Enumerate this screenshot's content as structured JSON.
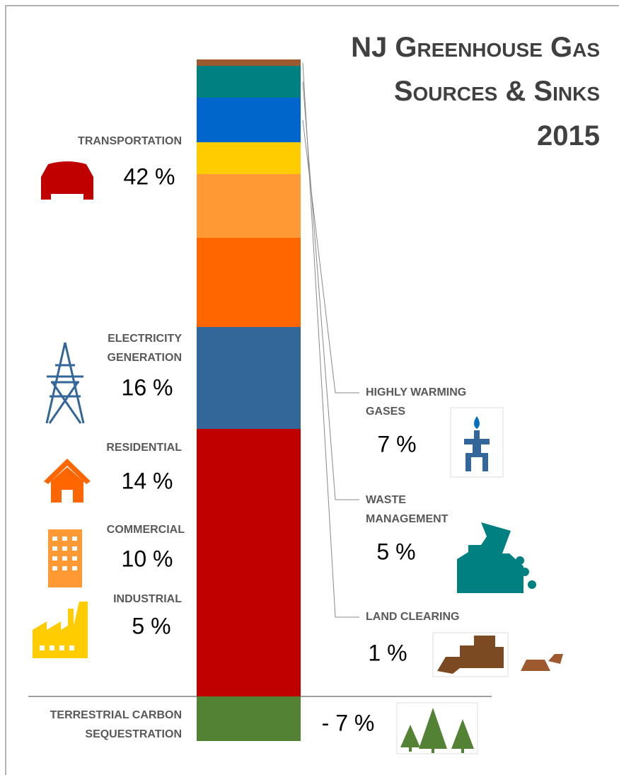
{
  "chart_data": {
    "type": "stacked_bar",
    "title": [
      "NJ Greenhouse Gas",
      "Sources & Sinks",
      "2015"
    ],
    "categories": [
      "TRANSPORTATION",
      "ELECTRICITY GENERATION",
      "RESIDENTIAL",
      "COMMERCIAL",
      "INDUSTRIAL",
      "HIGHLY WARMING GASES",
      "WASTE MANAGEMENT",
      "LAND CLEARING",
      "TERRESTRIAL CARBON SEQUESTRATION"
    ],
    "values": [
      42,
      16,
      14,
      10,
      5,
      7,
      5,
      1,
      -7
    ],
    "value_labels": [
      "42 %",
      "16 %",
      "14 %",
      "10 %",
      "5 %",
      "7 %",
      "5 %",
      "1 %",
      "- 7 %"
    ],
    "colors": [
      "#c00000",
      "#336699",
      "#ff6600",
      "#ff9933",
      "#ffcc00",
      "#0066cc",
      "#008080",
      "#9c5a2e",
      "#548235"
    ]
  }
}
